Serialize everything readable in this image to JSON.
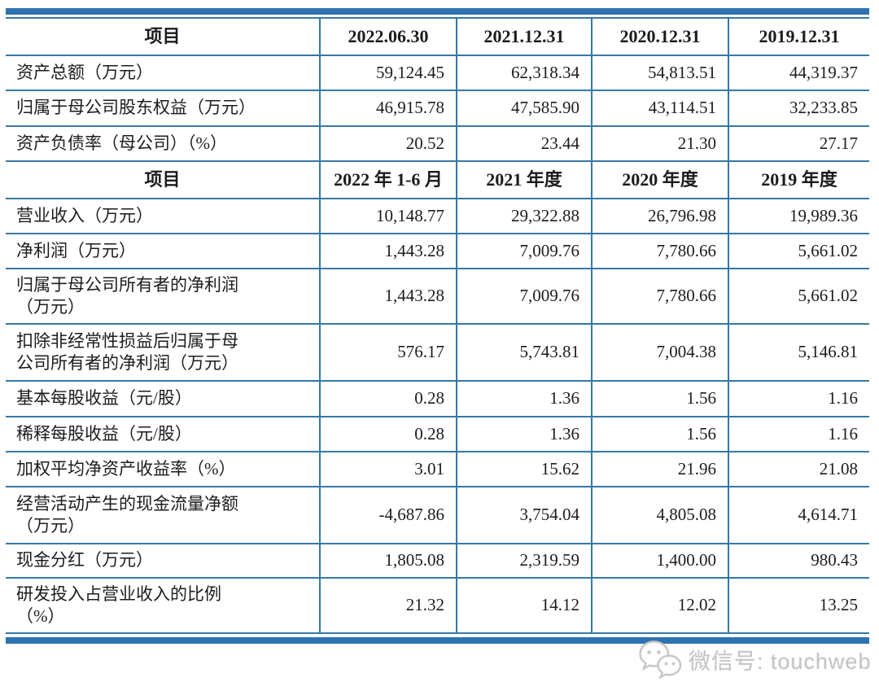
{
  "table1": {
    "header": [
      "项目",
      "2022.06.30",
      "2021.12.31",
      "2020.12.31",
      "2019.12.31"
    ],
    "rows": [
      {
        "label": "资产总额（万元）",
        "values": [
          "59,124.45",
          "62,318.34",
          "54,813.51",
          "44,319.37"
        ]
      },
      {
        "label": "归属于母公司股东权益（万元）",
        "values": [
          "46,915.78",
          "47,585.90",
          "43,114.51",
          "32,233.85"
        ]
      },
      {
        "label": "资产负债率（母公司）（%）",
        "values": [
          "20.52",
          "23.44",
          "21.30",
          "27.17"
        ]
      }
    ]
  },
  "table2": {
    "header": [
      "项目",
      "2022 年 1-6 月",
      "2021 年度",
      "2020 年度",
      "2019 年度"
    ],
    "rows": [
      {
        "label": "营业收入（万元）",
        "values": [
          "10,148.77",
          "29,322.88",
          "26,796.98",
          "19,989.36"
        ]
      },
      {
        "label": "净利润（万元）",
        "values": [
          "1,443.28",
          "7,009.76",
          "7,780.66",
          "5,661.02"
        ]
      },
      {
        "label": "归属于母公司所有者的净利润\n（万元）",
        "values": [
          "1,443.28",
          "7,009.76",
          "7,780.66",
          "5,661.02"
        ]
      },
      {
        "label": "扣除非经常性损益后归属于母\n公司所有者的净利润（万元）",
        "values": [
          "576.17",
          "5,743.81",
          "7,004.38",
          "5,146.81"
        ]
      },
      {
        "label": "基本每股收益（元/股）",
        "values": [
          "0.28",
          "1.36",
          "1.56",
          "1.16"
        ]
      },
      {
        "label": "稀释每股收益（元/股）",
        "values": [
          "0.28",
          "1.36",
          "1.56",
          "1.16"
        ]
      },
      {
        "label": "加权平均净资产收益率（%）",
        "values": [
          "3.01",
          "15.62",
          "21.96",
          "21.08"
        ]
      },
      {
        "label": "经营活动产生的现金流量净额\n（万元）",
        "values": [
          "-4,687.86",
          "3,754.04",
          "4,805.08",
          "4,614.71"
        ]
      },
      {
        "label": "现金分红（万元）",
        "values": [
          "1,805.08",
          "2,319.59",
          "1,400.00",
          "980.43"
        ]
      },
      {
        "label": "研发投入占营业收入的比例\n（%）",
        "values": [
          "21.32",
          "14.12",
          "12.02",
          "13.25"
        ]
      }
    ]
  },
  "watermark": {
    "label": "微信号: touchweb"
  },
  "colors": {
    "accent_bar": "#2e73b0",
    "grid_line": "#3578a5",
    "text": "#1c1c1c",
    "watermark": "#c3c3c3"
  }
}
